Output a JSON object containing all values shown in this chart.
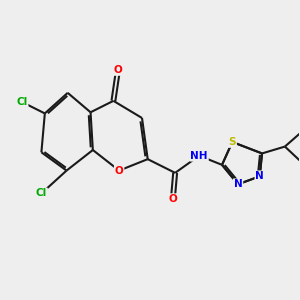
{
  "bg_color": "#eeeeee",
  "bond_color": "#1a1a1a",
  "atom_colors": {
    "O": "#ff0000",
    "N": "#0000ee",
    "S": "#bbbb00",
    "Cl": "#00aa00",
    "C": "#1a1a1a",
    "H": "#1a1a1a"
  },
  "figsize": [
    3.0,
    3.0
  ],
  "dpi": 100,
  "lw": 1.5,
  "fs": 7.5
}
